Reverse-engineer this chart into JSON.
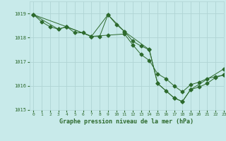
{
  "title": "Graphe pression niveau de la mer (hPa)",
  "background_color": "#c8eaea",
  "line_color": "#2d6a2d",
  "grid_color": "#b0d4d4",
  "xlim": [
    -0.5,
    23
  ],
  "ylim": [
    1015.0,
    1019.5
  ],
  "yticks": [
    1015,
    1016,
    1017,
    1018,
    1019
  ],
  "xticks": [
    0,
    1,
    2,
    3,
    4,
    5,
    6,
    7,
    8,
    9,
    10,
    11,
    12,
    13,
    14,
    15,
    16,
    17,
    18,
    19,
    20,
    21,
    22,
    23
  ],
  "series1": [
    [
      0,
      1018.95
    ],
    [
      1,
      1018.65
    ],
    [
      2,
      1018.45
    ],
    [
      3,
      1018.35
    ],
    [
      4,
      1018.45
    ],
    [
      5,
      1018.2
    ],
    [
      6,
      1018.2
    ],
    [
      7,
      1018.05
    ],
    [
      8,
      1018.05
    ],
    [
      9,
      1018.95
    ],
    [
      10,
      1018.55
    ],
    [
      11,
      1018.25
    ],
    [
      12,
      1017.85
    ],
    [
      13,
      1017.65
    ],
    [
      14,
      1017.5
    ],
    [
      15,
      1016.1
    ],
    [
      16,
      1015.8
    ],
    [
      17,
      1015.5
    ],
    [
      18,
      1015.35
    ],
    [
      19,
      1015.85
    ],
    [
      20,
      1015.95
    ],
    [
      21,
      1016.1
    ],
    [
      22,
      1016.35
    ],
    [
      23,
      1016.45
    ]
  ],
  "series2": [
    [
      0,
      1018.95
    ],
    [
      3,
      1018.35
    ],
    [
      4,
      1018.45
    ],
    [
      7,
      1018.05
    ],
    [
      9,
      1018.1
    ],
    [
      11,
      1018.15
    ],
    [
      12,
      1017.7
    ],
    [
      13,
      1017.3
    ],
    [
      14,
      1017.05
    ],
    [
      15,
      1016.5
    ],
    [
      16,
      1016.3
    ],
    [
      17,
      1016.0
    ],
    [
      18,
      1015.75
    ],
    [
      19,
      1016.05
    ],
    [
      20,
      1016.15
    ],
    [
      21,
      1016.3
    ],
    [
      22,
      1016.38
    ],
    [
      23,
      1016.45
    ]
  ],
  "series3": [
    [
      0,
      1018.95
    ],
    [
      4,
      1018.45
    ],
    [
      7,
      1018.05
    ],
    [
      9,
      1018.95
    ],
    [
      11,
      1018.25
    ],
    [
      14,
      1017.5
    ],
    [
      15,
      1016.1
    ],
    [
      17,
      1015.5
    ],
    [
      18,
      1015.35
    ],
    [
      19,
      1015.85
    ],
    [
      23,
      1016.7
    ]
  ],
  "marker_size": 2.5
}
